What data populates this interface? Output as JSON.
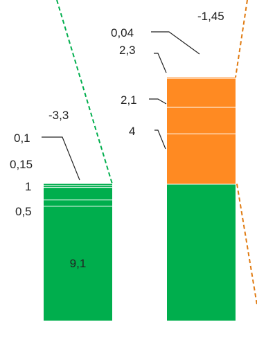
{
  "chart_data": {
    "type": "bar",
    "subtype": "stacked-waterfall",
    "title": "",
    "xlabel": "",
    "ylabel": "",
    "grid": false,
    "legend": "none",
    "colors": {
      "green": "#00AE4D",
      "orange": "#FF8A22",
      "segment_divider": "#ffffff",
      "connector_green": "#00AE4D",
      "connector_orange": "#E07A10",
      "label_line": "#222222"
    },
    "bars": [
      {
        "id": "left",
        "segments": [
          {
            "label": "9,1",
            "value": 9.1,
            "color": "green"
          },
          {
            "label": "0,5",
            "value": 0.5,
            "color": "green"
          },
          {
            "label": "1",
            "value": 1,
            "color": "green"
          },
          {
            "label": "0,15",
            "value": 0.15,
            "color": "green"
          },
          {
            "label": "0,1",
            "value": 0.1,
            "color": "green"
          }
        ],
        "change_label": "-3,3"
      },
      {
        "id": "right",
        "segments": [
          {
            "label": "",
            "value": 10.85,
            "color": "green"
          },
          {
            "label": "4",
            "value": 4,
            "color": "orange"
          },
          {
            "label": "2,1",
            "value": 2.1,
            "color": "orange"
          },
          {
            "label": "2,3",
            "value": 2.3,
            "color": "orange"
          },
          {
            "label": "0,04",
            "value": 0.04,
            "color": "orange"
          }
        ],
        "change_label": "-1,45"
      }
    ]
  }
}
